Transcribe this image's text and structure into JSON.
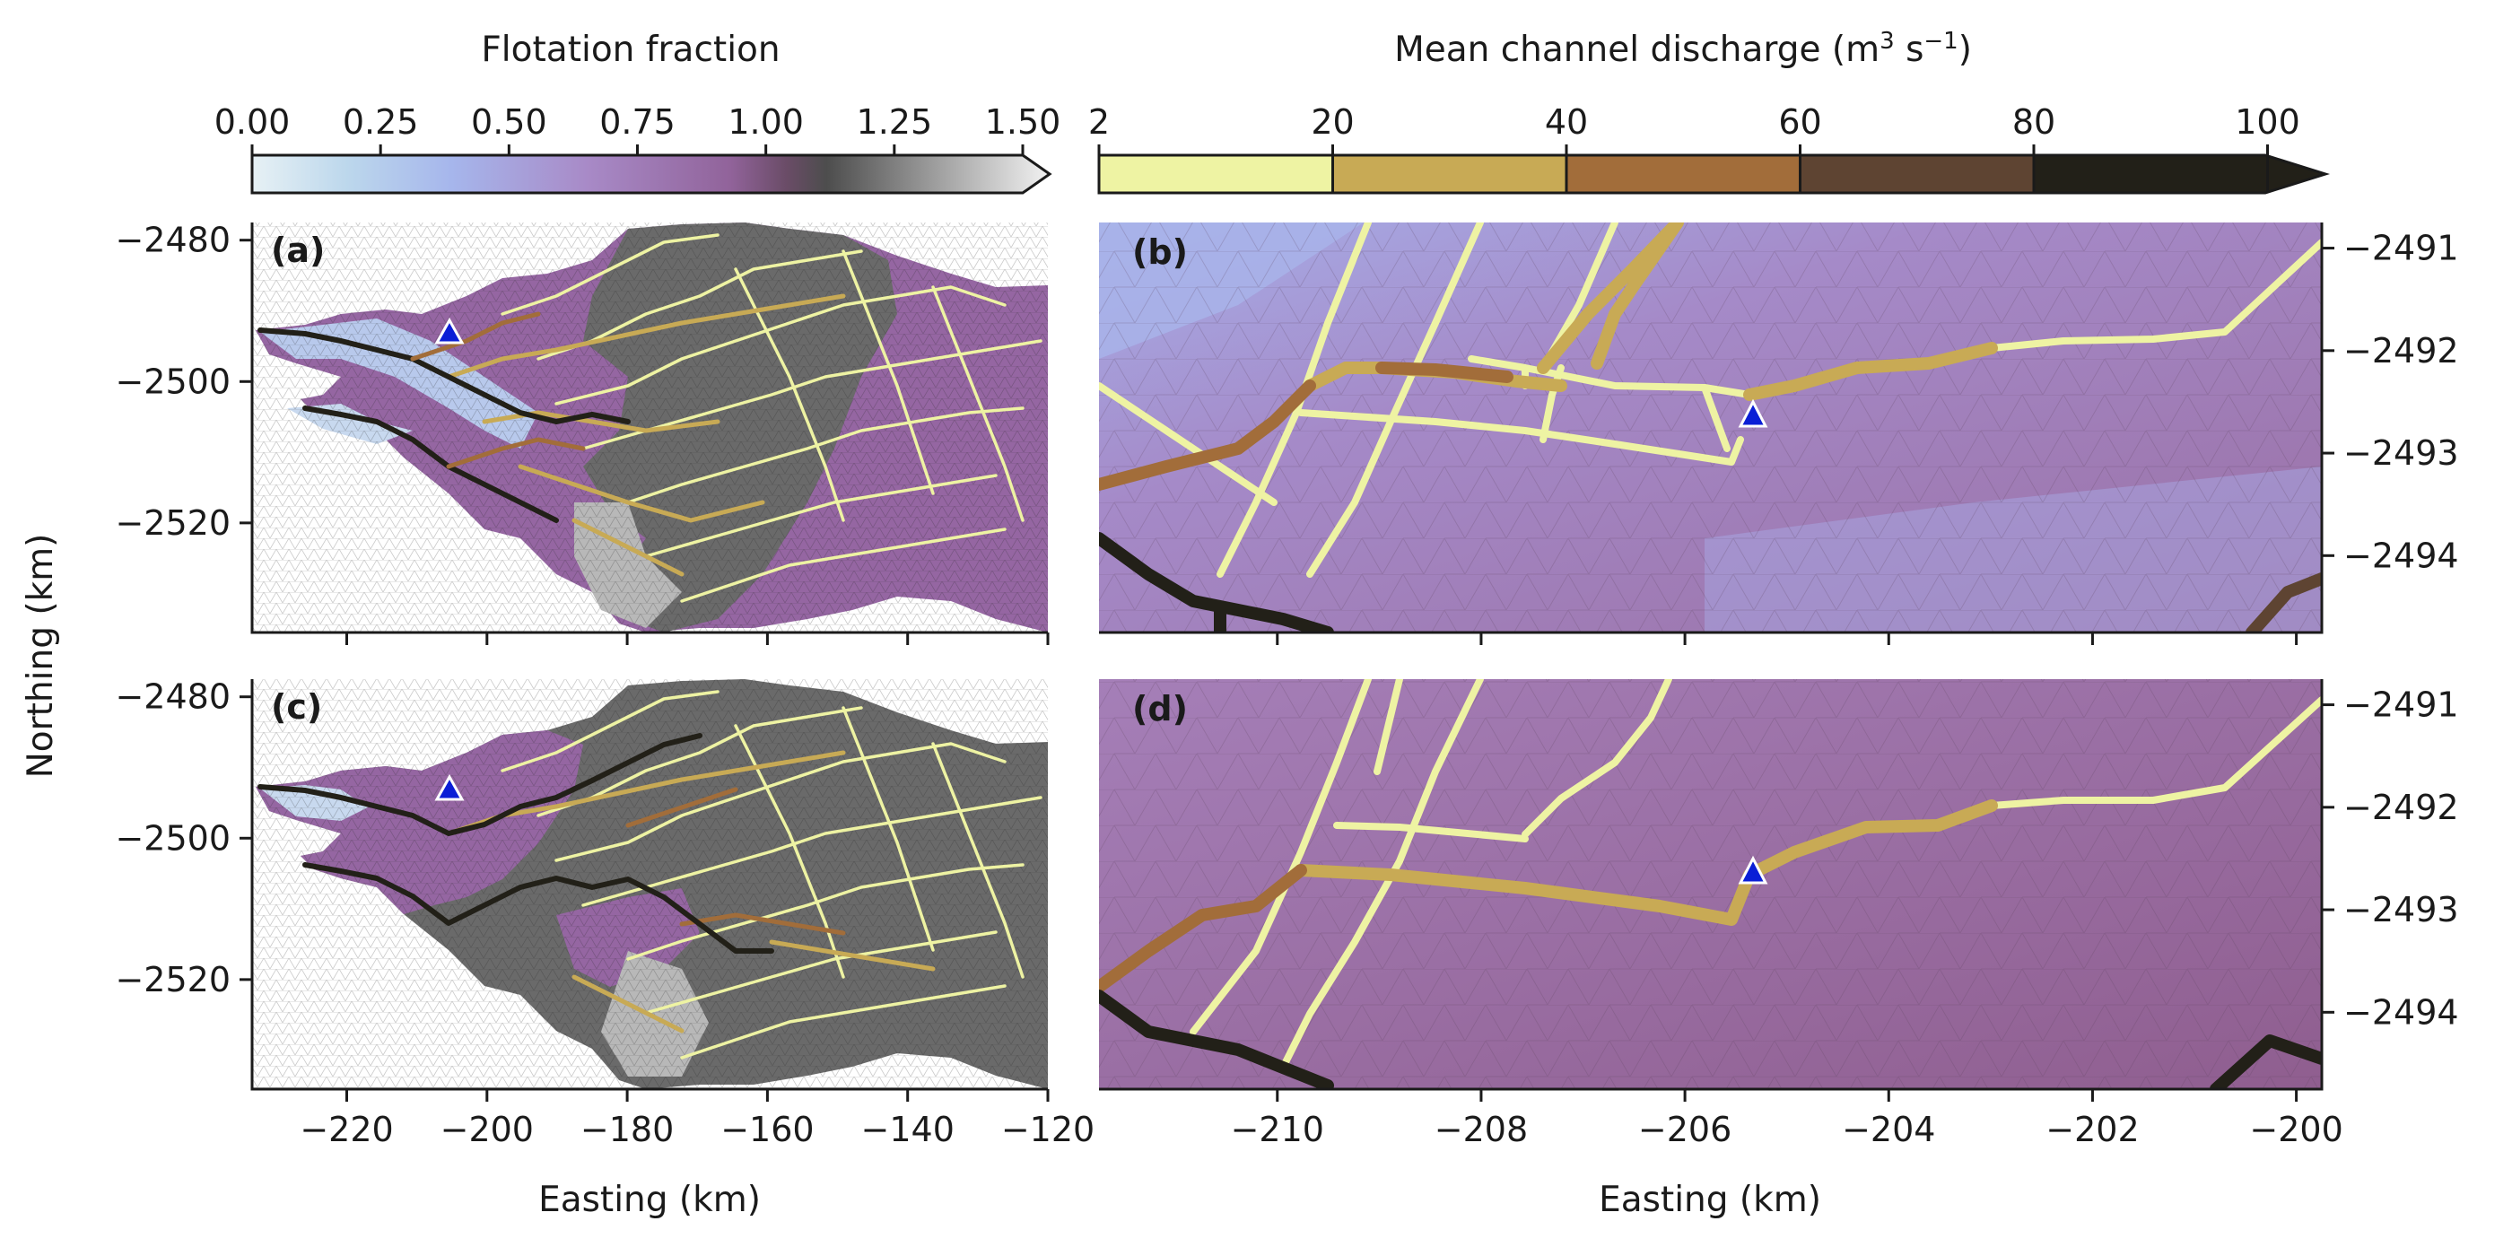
{
  "chart_data": [
    {
      "type": "colorbar",
      "title": "Flotation fraction",
      "ticks": [
        "0.00",
        "0.25",
        "0.50",
        "0.75",
        "1.00",
        "1.25",
        "1.50"
      ],
      "range": [
        0,
        1.5
      ],
      "extend": "max",
      "colors": [
        "#e7f1f5",
        "#a7b8ec",
        "#a889c6",
        "#7f4c78",
        "#4e4e4e",
        "#9e9e9e",
        "#f2f2f2"
      ]
    },
    {
      "type": "colorbar",
      "title": "Mean channel discharge (m",
      "title_sup": "3",
      "title_mid": " s",
      "title_sup2": "−1",
      "title_end": ")",
      "ticks": [
        "2",
        "20",
        "40",
        "60",
        "80",
        "100"
      ],
      "bins": [
        [
          2,
          20
        ],
        [
          20,
          40
        ],
        [
          40,
          60
        ],
        [
          60,
          80
        ],
        [
          80,
          100
        ]
      ],
      "extend": "max",
      "colors": [
        "#eef3a3",
        "#c8aa55",
        "#a26d3a",
        "#5e4432",
        "#222018"
      ]
    },
    {
      "type": "map",
      "panel": "(a)",
      "xlim": [
        -233.5,
        -120
      ],
      "ylim": [
        -2535.5,
        -2477.5
      ],
      "xticks": [
        -220,
        -200,
        -180,
        -160,
        -140,
        -120
      ],
      "yticks": [
        -2480,
        -2500,
        -2520
      ],
      "ytick_labels": [
        "−2480",
        "−2500",
        "−2520"
      ],
      "marker": {
        "x": -205.3,
        "y": -2492.7,
        "color": "#0a1ed6"
      }
    },
    {
      "type": "map",
      "panel": "(b)",
      "xlim": [
        -211.75,
        -199.75
      ],
      "ylim": [
        -2494.75,
        -2490.75
      ],
      "xticks": [
        -210,
        -208,
        -206,
        -204,
        -202,
        -200
      ],
      "yticks": [
        -2491,
        -2492,
        -2493,
        -2494
      ],
      "ytick_labels": [
        "−2491",
        "−2492",
        "−2493",
        "−2494"
      ],
      "marker": {
        "x": -205.3,
        "y": -2492.7,
        "color": "#0a1ed6"
      }
    },
    {
      "type": "map",
      "panel": "(c)",
      "xlim": [
        -233.5,
        -120
      ],
      "ylim": [
        -2535.5,
        -2477.5
      ],
      "xticks": [
        -220,
        -200,
        -180,
        -160,
        -140,
        -120
      ],
      "xtick_labels": [
        "−220",
        "−200",
        "−180",
        "−160",
        "−140",
        "−120"
      ],
      "yticks": [
        -2480,
        -2500,
        -2520
      ],
      "ytick_labels": [
        "−2480",
        "−2500",
        "−2520"
      ],
      "marker": {
        "x": -205.3,
        "y": -2492.7,
        "color": "#0a1ed6"
      }
    },
    {
      "type": "map",
      "panel": "(d)",
      "xlim": [
        -211.75,
        -199.75
      ],
      "ylim": [
        -2494.75,
        -2490.75
      ],
      "xticks": [
        -210,
        -208,
        -206,
        -204,
        -202,
        -200
      ],
      "xtick_labels": [
        "−210",
        "−208",
        "−206",
        "−204",
        "−202",
        "−200"
      ],
      "yticks": [
        -2491,
        -2492,
        -2493,
        -2494
      ],
      "ytick_labels": [
        "−2491",
        "−2492",
        "−2493",
        "−2494"
      ],
      "marker": {
        "x": -205.3,
        "y": -2492.7,
        "color": "#0a1ed6"
      }
    }
  ],
  "labels": {
    "xlabel_left": "Easting (km)",
    "xlabel_right": "Easting (km)",
    "ylabel": "Northing (km)"
  }
}
